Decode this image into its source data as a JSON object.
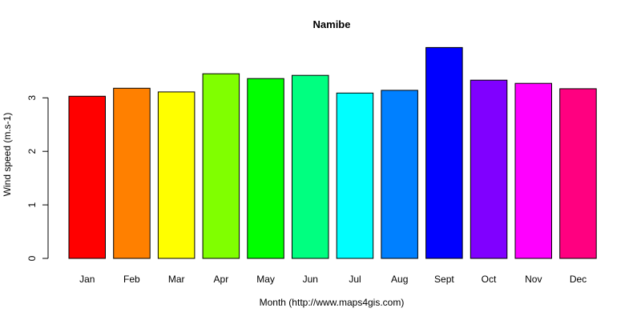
{
  "chart_data": {
    "type": "bar",
    "title": "Namibe",
    "xlabel": "Month (http://www.maps4gis.com)",
    "ylabel": "Wind speed (m.s-1)",
    "categories": [
      "Jan",
      "Feb",
      "Mar",
      "Apr",
      "May",
      "Jun",
      "Jul",
      "Aug",
      "Sept",
      "Oct",
      "Nov",
      "Dec"
    ],
    "values": [
      3.03,
      3.18,
      3.11,
      3.45,
      3.36,
      3.42,
      3.09,
      3.14,
      3.94,
      3.33,
      3.27,
      3.17
    ],
    "colors": [
      "#ff0000",
      "#ff8000",
      "#ffff00",
      "#80ff00",
      "#00ff00",
      "#00ff80",
      "#00ffff",
      "#0080ff",
      "#0000ff",
      "#8000ff",
      "#ff00ff",
      "#ff0080"
    ],
    "bar_border_color": "#000000",
    "yticks": [
      0,
      1,
      2,
      3
    ],
    "ylim": [
      0,
      4.1
    ],
    "grid": false,
    "legend": "none"
  }
}
